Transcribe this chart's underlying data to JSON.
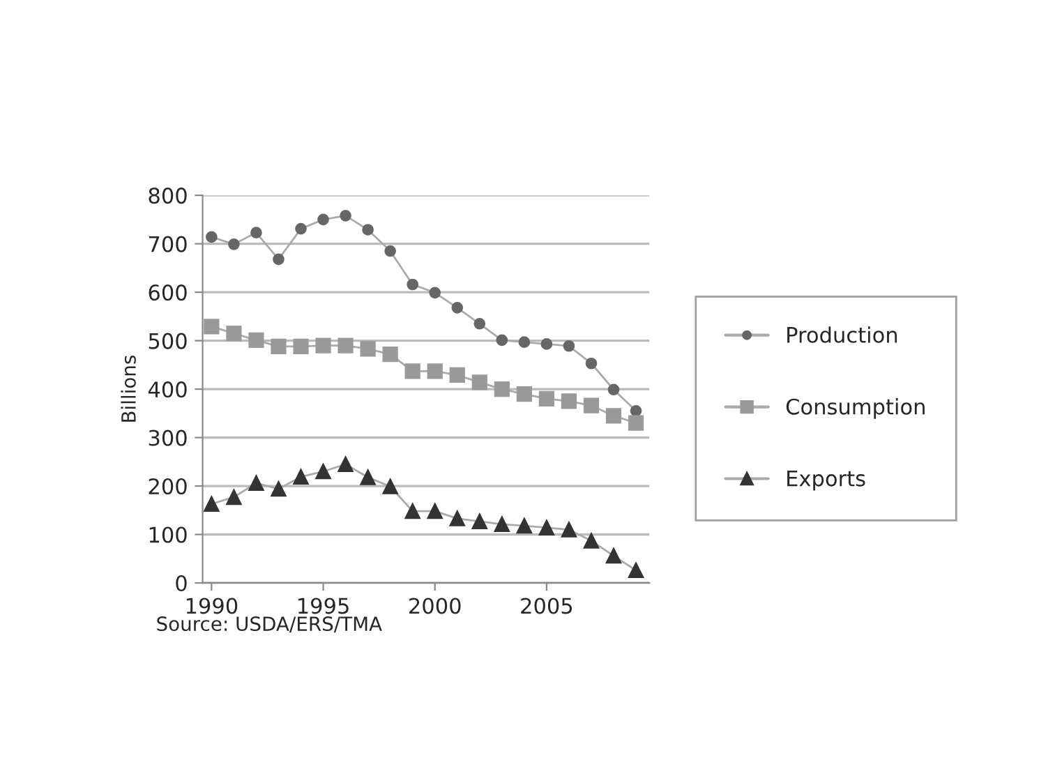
{
  "chart_data": {
    "type": "line",
    "ylabel": "Billions",
    "x": [
      1990,
      1991,
      1992,
      1993,
      1994,
      1995,
      1996,
      1997,
      1998,
      1999,
      2000,
      2001,
      2002,
      2003,
      2004,
      2005,
      2006,
      2007,
      2008,
      2009
    ],
    "series": [
      {
        "name": "Production",
        "color": "#666666",
        "marker": "circle",
        "values": [
          714,
          699,
          723,
          668,
          731,
          750,
          758,
          729,
          685,
          616,
          599,
          568,
          535,
          501,
          497,
          493,
          489,
          453,
          399,
          355
        ]
      },
      {
        "name": "Consumption",
        "color": "#999999",
        "marker": "square",
        "values": [
          529,
          515,
          501,
          488,
          488,
          490,
          490,
          483,
          472,
          437,
          437,
          429,
          414,
          400,
          390,
          380,
          375,
          366,
          345,
          330
        ]
      },
      {
        "name": "Exports",
        "color": "#333333",
        "marker": "triangle",
        "values": [
          163,
          177,
          206,
          194,
          219,
          230,
          245,
          218,
          199,
          148,
          148,
          133,
          127,
          121,
          118,
          114,
          110,
          87,
          56,
          26
        ]
      }
    ],
    "xlim": [
      1989.6,
      2009.6
    ],
    "xticks": [
      1990,
      1995,
      2000,
      2005
    ],
    "ylim": [
      0,
      800
    ],
    "yticks": [
      0,
      100,
      200,
      300,
      400,
      500,
      600,
      700,
      800
    ],
    "grid": "y",
    "legend": "right",
    "line_style": "solid",
    "annotations": [
      "Source: USDA/ERS/TMA"
    ]
  }
}
